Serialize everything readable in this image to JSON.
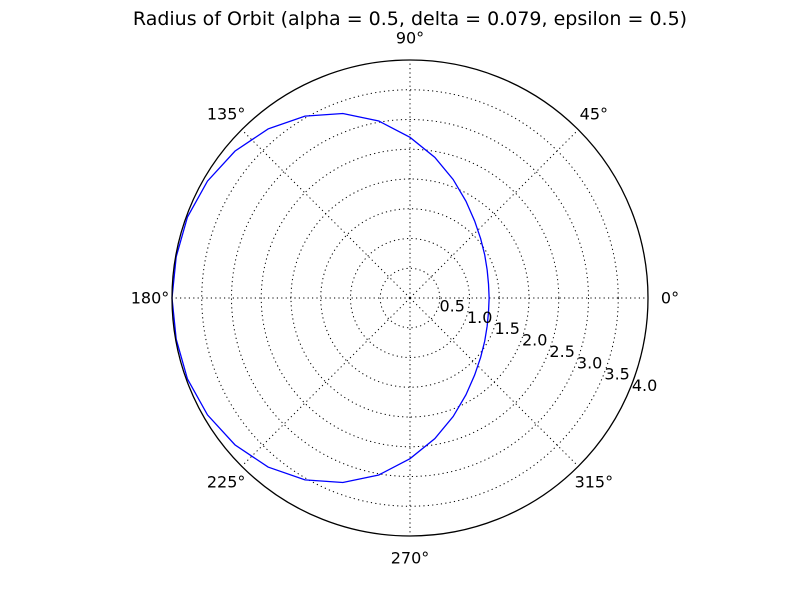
{
  "chart_data": {
    "type": "line",
    "projection": "polar",
    "title": "Radius of Orbit (alpha = 0.5, delta = 0.079, epsilon = 0.5)",
    "rlim": [
      0,
      4.0
    ],
    "r_ticks": [
      0.5,
      1.0,
      1.5,
      2.0,
      2.5,
      3.0,
      3.5,
      4.0
    ],
    "r_tick_labels": [
      "0.5",
      "1.0",
      "1.5",
      "2.0",
      "2.5",
      "3.0",
      "3.5",
      "4.0"
    ],
    "theta_ticks_deg": [
      0,
      45,
      90,
      135,
      180,
      225,
      270,
      315
    ],
    "theta_tick_labels": [
      "0°",
      "45°",
      "90°",
      "135°",
      "180°",
      "225°",
      "270°",
      "315°"
    ],
    "grid": true,
    "series": [
      {
        "color": "#0000ff",
        "theta_deg": [
          0,
          10,
          20,
          30,
          40,
          50,
          60,
          70,
          80,
          90,
          100,
          110,
          120,
          130,
          140,
          150,
          160,
          170,
          180,
          190,
          200,
          210,
          220,
          230,
          240,
          250,
          260,
          270,
          280,
          290,
          300,
          310,
          320,
          330,
          340,
          350,
          360
        ],
        "r": [
          1.33,
          1.34,
          1.38,
          1.45,
          1.55,
          1.69,
          1.88,
          2.12,
          2.4,
          2.7,
          3.02,
          3.3,
          3.53,
          3.71,
          3.84,
          3.93,
          3.98,
          3.99,
          4.0,
          3.99,
          3.98,
          3.93,
          3.84,
          3.71,
          3.53,
          3.3,
          3.02,
          2.7,
          2.4,
          2.12,
          1.88,
          1.69,
          1.55,
          1.45,
          1.38,
          1.34,
          1.33
        ]
      }
    ]
  }
}
